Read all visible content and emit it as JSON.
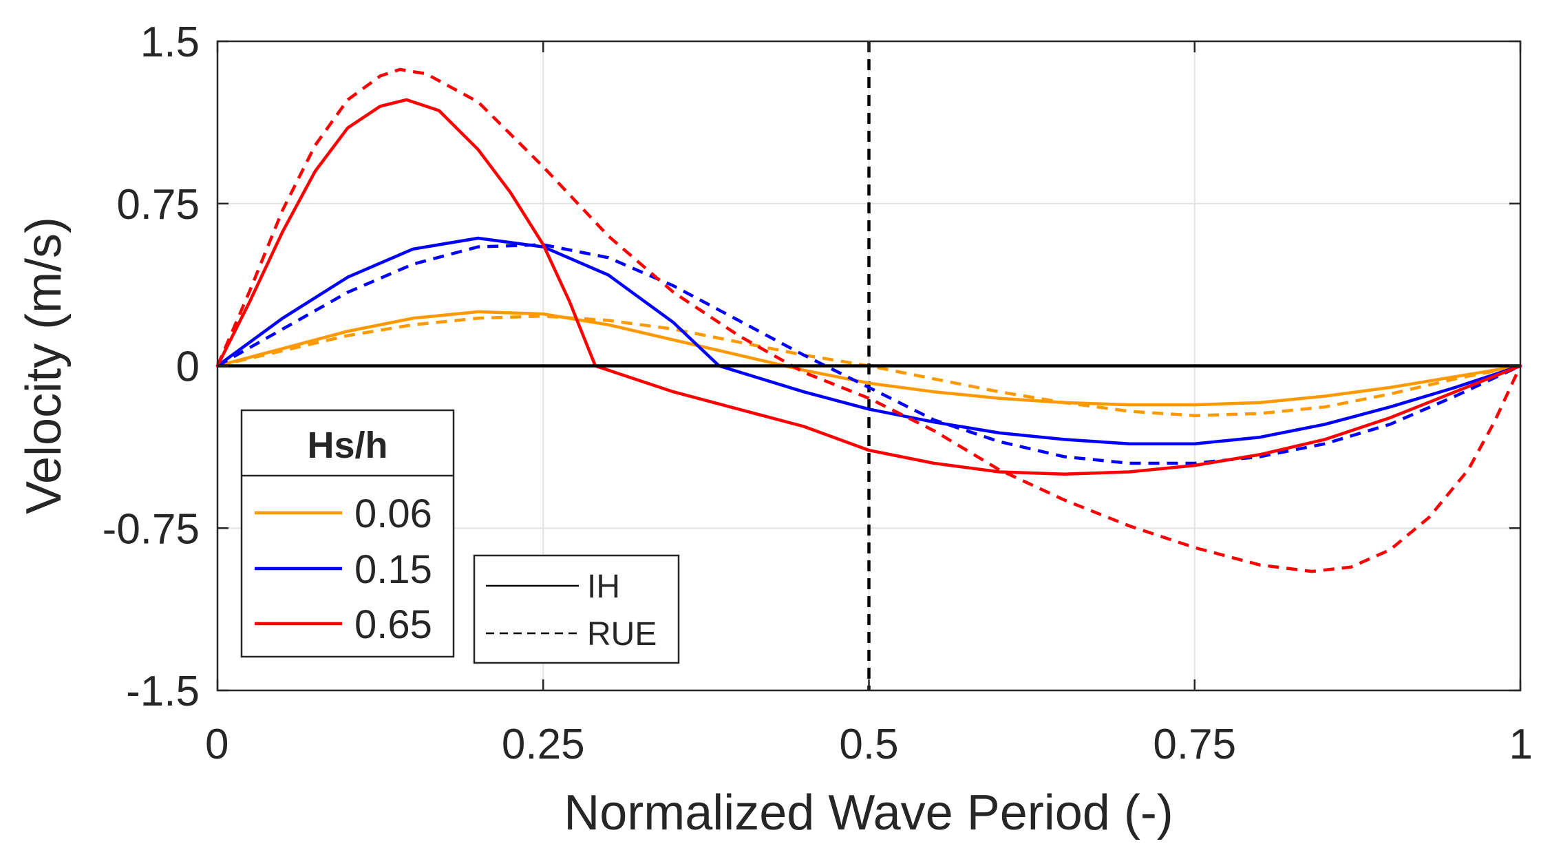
{
  "chart_data": {
    "type": "line",
    "xlabel": "Normalized Wave Period (-)",
    "ylabel": "Velocity (m/s)",
    "xlim": [
      0,
      1
    ],
    "ylim": [
      -1.5,
      1.5
    ],
    "xticks": [
      0,
      0.25,
      0.5,
      0.75,
      1
    ],
    "xtick_labels": [
      "0",
      "0.25",
      "0.5",
      "0.75",
      "1"
    ],
    "yticks": [
      -1.5,
      -0.75,
      0,
      0.75,
      1.5
    ],
    "ytick_labels": [
      "-1.5",
      "-0.75",
      "0",
      "0.75",
      "1.5"
    ],
    "grid": true,
    "vertical_reference_line": {
      "x": 0.5,
      "style": "dashed",
      "color": "#000000"
    },
    "zero_line": {
      "y": 0,
      "color": "#000000"
    },
    "legend_hs": {
      "title": "Hs/h",
      "placement": "lower-left",
      "entries": [
        {
          "label": "0.06",
          "color": "#ff9900"
        },
        {
          "label": "0.15",
          "color": "#0000ff"
        },
        {
          "label": "0.65",
          "color": "#ff0000"
        }
      ]
    },
    "legend_style": {
      "placement": "lower-left-center",
      "entries": [
        {
          "label": "IH",
          "dash": "solid"
        },
        {
          "label": "RUE",
          "dash": "dashed"
        }
      ]
    },
    "series": [
      {
        "name": "0.06 IH",
        "hs": "0.06",
        "model": "IH",
        "color": "#ff9900",
        "dash": "solid",
        "x": [
          0,
          0.05,
          0.1,
          0.15,
          0.2,
          0.25,
          0.3,
          0.35,
          0.4,
          0.45,
          0.5,
          0.55,
          0.6,
          0.65,
          0.7,
          0.75,
          0.8,
          0.85,
          0.9,
          0.95,
          1.0
        ],
        "values": [
          0,
          0.08,
          0.16,
          0.22,
          0.25,
          0.24,
          0.19,
          0.12,
          0.05,
          -0.02,
          -0.08,
          -0.12,
          -0.15,
          -0.17,
          -0.18,
          -0.18,
          -0.17,
          -0.14,
          -0.1,
          -0.05,
          0
        ]
      },
      {
        "name": "0.06 RUE",
        "hs": "0.06",
        "model": "RUE",
        "color": "#ff9900",
        "dash": "dashed",
        "x": [
          0,
          0.05,
          0.1,
          0.15,
          0.2,
          0.25,
          0.3,
          0.35,
          0.4,
          0.45,
          0.5,
          0.55,
          0.6,
          0.65,
          0.7,
          0.75,
          0.8,
          0.85,
          0.9,
          0.95,
          1.0
        ],
        "values": [
          0,
          0.07,
          0.14,
          0.19,
          0.22,
          0.23,
          0.21,
          0.17,
          0.11,
          0.05,
          0.0,
          -0.06,
          -0.12,
          -0.17,
          -0.21,
          -0.23,
          -0.22,
          -0.19,
          -0.13,
          -0.06,
          0
        ]
      },
      {
        "name": "0.15 IH",
        "hs": "0.15",
        "model": "IH",
        "color": "#0000ff",
        "dash": "solid",
        "x": [
          0,
          0.05,
          0.1,
          0.15,
          0.2,
          0.25,
          0.3,
          0.35,
          0.385,
          0.45,
          0.5,
          0.55,
          0.6,
          0.65,
          0.7,
          0.75,
          0.8,
          0.85,
          0.9,
          0.95,
          1.0
        ],
        "values": [
          0,
          0.22,
          0.41,
          0.54,
          0.59,
          0.55,
          0.42,
          0.2,
          0.0,
          -0.12,
          -0.2,
          -0.26,
          -0.31,
          -0.34,
          -0.36,
          -0.36,
          -0.33,
          -0.27,
          -0.19,
          -0.1,
          0
        ]
      },
      {
        "name": "0.15 RUE",
        "hs": "0.15",
        "model": "RUE",
        "color": "#0000ff",
        "dash": "dashed",
        "x": [
          0,
          0.05,
          0.1,
          0.15,
          0.2,
          0.25,
          0.3,
          0.35,
          0.4,
          0.45,
          0.5,
          0.55,
          0.6,
          0.65,
          0.7,
          0.75,
          0.8,
          0.85,
          0.9,
          0.95,
          1.0
        ],
        "values": [
          0,
          0.17,
          0.34,
          0.47,
          0.55,
          0.56,
          0.5,
          0.37,
          0.21,
          0.05,
          -0.1,
          -0.25,
          -0.35,
          -0.42,
          -0.45,
          -0.45,
          -0.42,
          -0.36,
          -0.27,
          -0.14,
          0
        ]
      },
      {
        "name": "0.65 IH",
        "hs": "0.65",
        "model": "IH",
        "color": "#ff0000",
        "dash": "solid",
        "x": [
          0,
          0.025,
          0.05,
          0.075,
          0.1,
          0.125,
          0.145,
          0.17,
          0.2,
          0.225,
          0.25,
          0.27,
          0.29,
          0.35,
          0.4,
          0.45,
          0.5,
          0.55,
          0.6,
          0.65,
          0.7,
          0.75,
          0.8,
          0.85,
          0.9,
          0.95,
          1.0
        ],
        "values": [
          0,
          0.3,
          0.62,
          0.9,
          1.1,
          1.2,
          1.23,
          1.18,
          1.0,
          0.8,
          0.56,
          0.3,
          0.0,
          -0.12,
          -0.2,
          -0.28,
          -0.39,
          -0.45,
          -0.49,
          -0.5,
          -0.49,
          -0.46,
          -0.41,
          -0.34,
          -0.24,
          -0.12,
          0
        ]
      },
      {
        "name": "0.65 RUE",
        "hs": "0.65",
        "model": "RUE",
        "color": "#ff0000",
        "dash": "dashed",
        "x": [
          0,
          0.025,
          0.05,
          0.075,
          0.1,
          0.125,
          0.14,
          0.16,
          0.2,
          0.25,
          0.3,
          0.35,
          0.4,
          0.45,
          0.5,
          0.55,
          0.6,
          0.65,
          0.7,
          0.75,
          0.8,
          0.84,
          0.87,
          0.9,
          0.93,
          0.96,
          0.98,
          1.0
        ],
        "values": [
          0,
          0.35,
          0.72,
          1.02,
          1.23,
          1.34,
          1.37,
          1.35,
          1.22,
          0.92,
          0.6,
          0.34,
          0.14,
          -0.03,
          -0.15,
          -0.3,
          -0.48,
          -0.62,
          -0.74,
          -0.84,
          -0.92,
          -0.95,
          -0.93,
          -0.85,
          -0.7,
          -0.48,
          -0.26,
          0
        ]
      }
    ]
  }
}
